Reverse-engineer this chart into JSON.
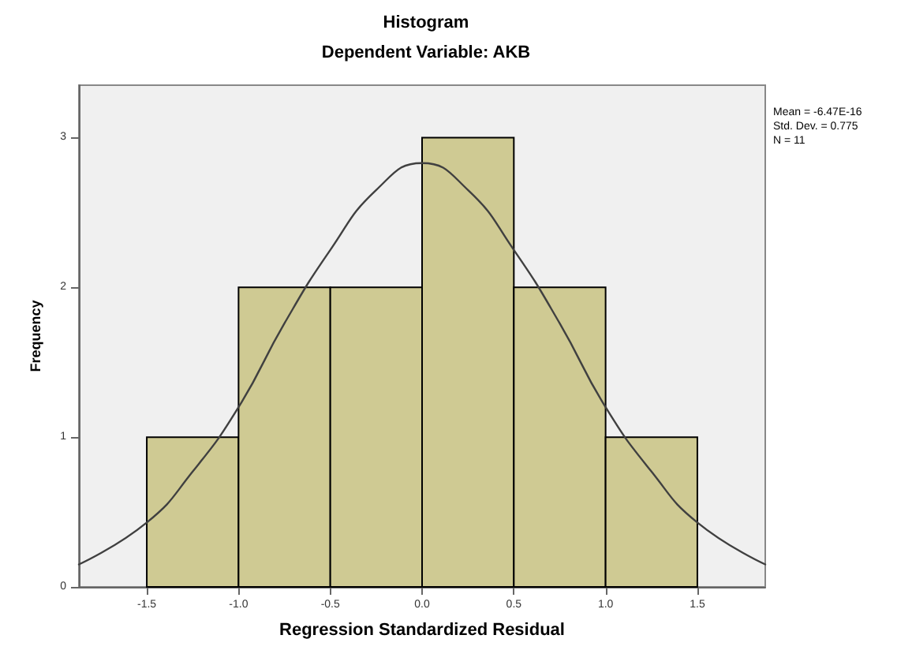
{
  "chart_data": {
    "type": "histogram",
    "title": "Histogram",
    "subtitle": "Dependent Variable: AKB",
    "xlabel": "Regression Standardized Residual",
    "ylabel": "Frequency",
    "annotations": [
      "Mean = -6.47E-16",
      "Std. Dev. = 0.775",
      "N = 11"
    ],
    "bins": [
      -1.5,
      -1.0,
      -0.5,
      0.0,
      0.5,
      1.0,
      1.5
    ],
    "series": [
      {
        "color": "#cfca93",
        "values": [
          1,
          2,
          2,
          3,
          2,
          1
        ]
      },
      {
        "type": "line",
        "color": "#404040",
        "x": [
          -1.87,
          -1.5,
          -1.25,
          -1.0,
          -0.75,
          -0.5,
          -0.25,
          0.0,
          0.25,
          0.5,
          0.75,
          1.0,
          1.25,
          1.5,
          1.87
        ],
        "values": [
          0.15,
          0.43,
          0.77,
          1.2,
          1.76,
          2.25,
          2.65,
          2.83,
          2.65,
          2.25,
          1.76,
          1.2,
          0.77,
          0.43,
          0.15
        ]
      }
    ],
    "xlim": [
      -1.87,
      1.87
    ],
    "ylim": [
      0,
      3.35
    ],
    "xticks": [
      -1.5,
      {
        "value": -1.0,
        "label": "-1.0"
      },
      -0.5,
      {
        "value": 0.0,
        "label": "0.0"
      },
      0.5,
      {
        "value": 1.0,
        "label": "1.0"
      },
      1.5
    ],
    "yticks": [
      0,
      1,
      2,
      3
    ],
    "grid": false,
    "marker": "none",
    "line_style": "solid"
  }
}
